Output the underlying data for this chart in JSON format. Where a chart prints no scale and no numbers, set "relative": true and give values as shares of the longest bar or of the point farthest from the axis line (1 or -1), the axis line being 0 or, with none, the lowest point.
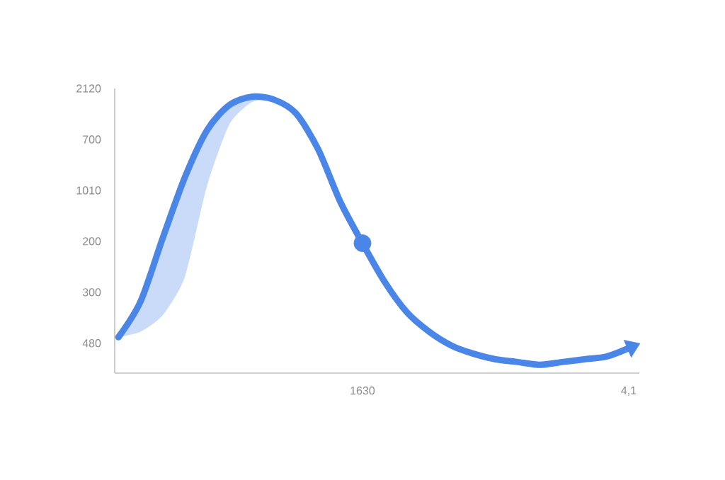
{
  "chart_data": {
    "type": "line",
    "relative": true,
    "categories": [
      null,
      null,
      null,
      null,
      null,
      null,
      null,
      null,
      null,
      null,
      null,
      "1630",
      null,
      null,
      null,
      null,
      null,
      null,
      null,
      null,
      null,
      null,
      null,
      "4,1"
    ],
    "series": [
      {
        "color": "#4a86e8",
        "values": [
          0.13,
          0.26,
          0.49,
          0.71,
          0.88,
          0.97,
          1.0,
          0.99,
          0.94,
          0.81,
          0.62,
          0.47,
          0.33,
          0.22,
          0.15,
          0.1,
          0.07,
          0.05,
          0.04,
          0.03,
          0.04,
          0.05,
          0.06,
          0.09
        ],
        "lower": [
          0.13,
          0.15,
          0.21,
          0.35,
          0.68,
          0.9,
          0.98,
          0.99,
          null,
          null,
          null,
          null,
          null,
          null,
          null,
          null,
          null,
          null,
          null,
          null,
          null,
          null,
          null,
          null
        ],
        "upper": [
          0.13,
          0.26,
          0.49,
          0.71,
          0.88,
          0.97,
          1.0,
          0.99,
          null,
          null,
          null,
          null,
          null,
          null,
          null,
          null,
          null,
          null,
          null,
          null,
          null,
          null,
          null,
          null
        ]
      },
      {
        "type": "scatter",
        "color": "#4a86e8",
        "values": [
          null,
          null,
          null,
          null,
          null,
          null,
          null,
          null,
          null,
          null,
          null,
          0.47,
          null,
          null,
          null,
          null,
          null,
          null,
          null,
          null,
          null,
          null,
          null,
          null
        ]
      }
    ],
    "annotations": [
      "2120",
      "700",
      "1010",
      "200",
      "300",
      "480"
    ],
    "marker": "none",
    "line_style": "solid"
  }
}
